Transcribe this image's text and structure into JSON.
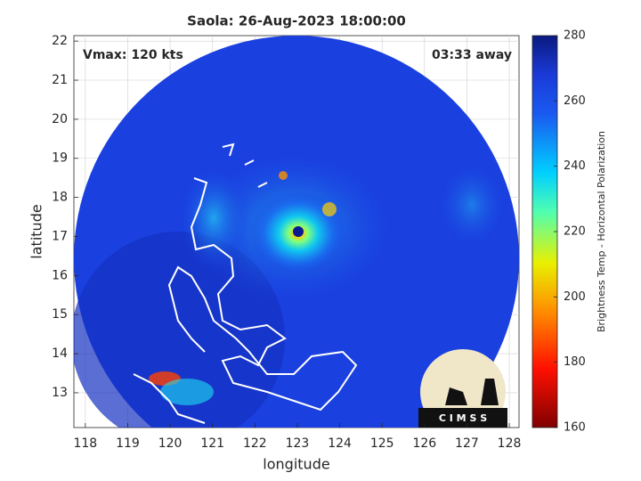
{
  "chart_data": {
    "type": "map",
    "title": "Saola: 26-Aug-2023 18:00:00",
    "annotations": [
      "Vmax: 120 kts",
      "03:33 away"
    ],
    "xlabel": "longitude",
    "ylabel": "latitude",
    "xlim": [
      117.73,
      128.23
    ],
    "ylim": [
      12.11,
      22.14
    ],
    "xticks": [
      118,
      119,
      120,
      121,
      122,
      123,
      124,
      125,
      126,
      127,
      128
    ],
    "yticks": [
      13,
      14,
      15,
      16,
      17,
      18,
      19,
      20,
      21,
      22
    ],
    "grid": true,
    "colorbar": {
      "label": "Brightness Temp - Horizontal Polarization",
      "lim": [
        160,
        280
      ],
      "ticks": [
        160,
        180,
        200,
        220,
        240,
        260,
        280
      ]
    },
    "logo": "C I M S S"
  }
}
